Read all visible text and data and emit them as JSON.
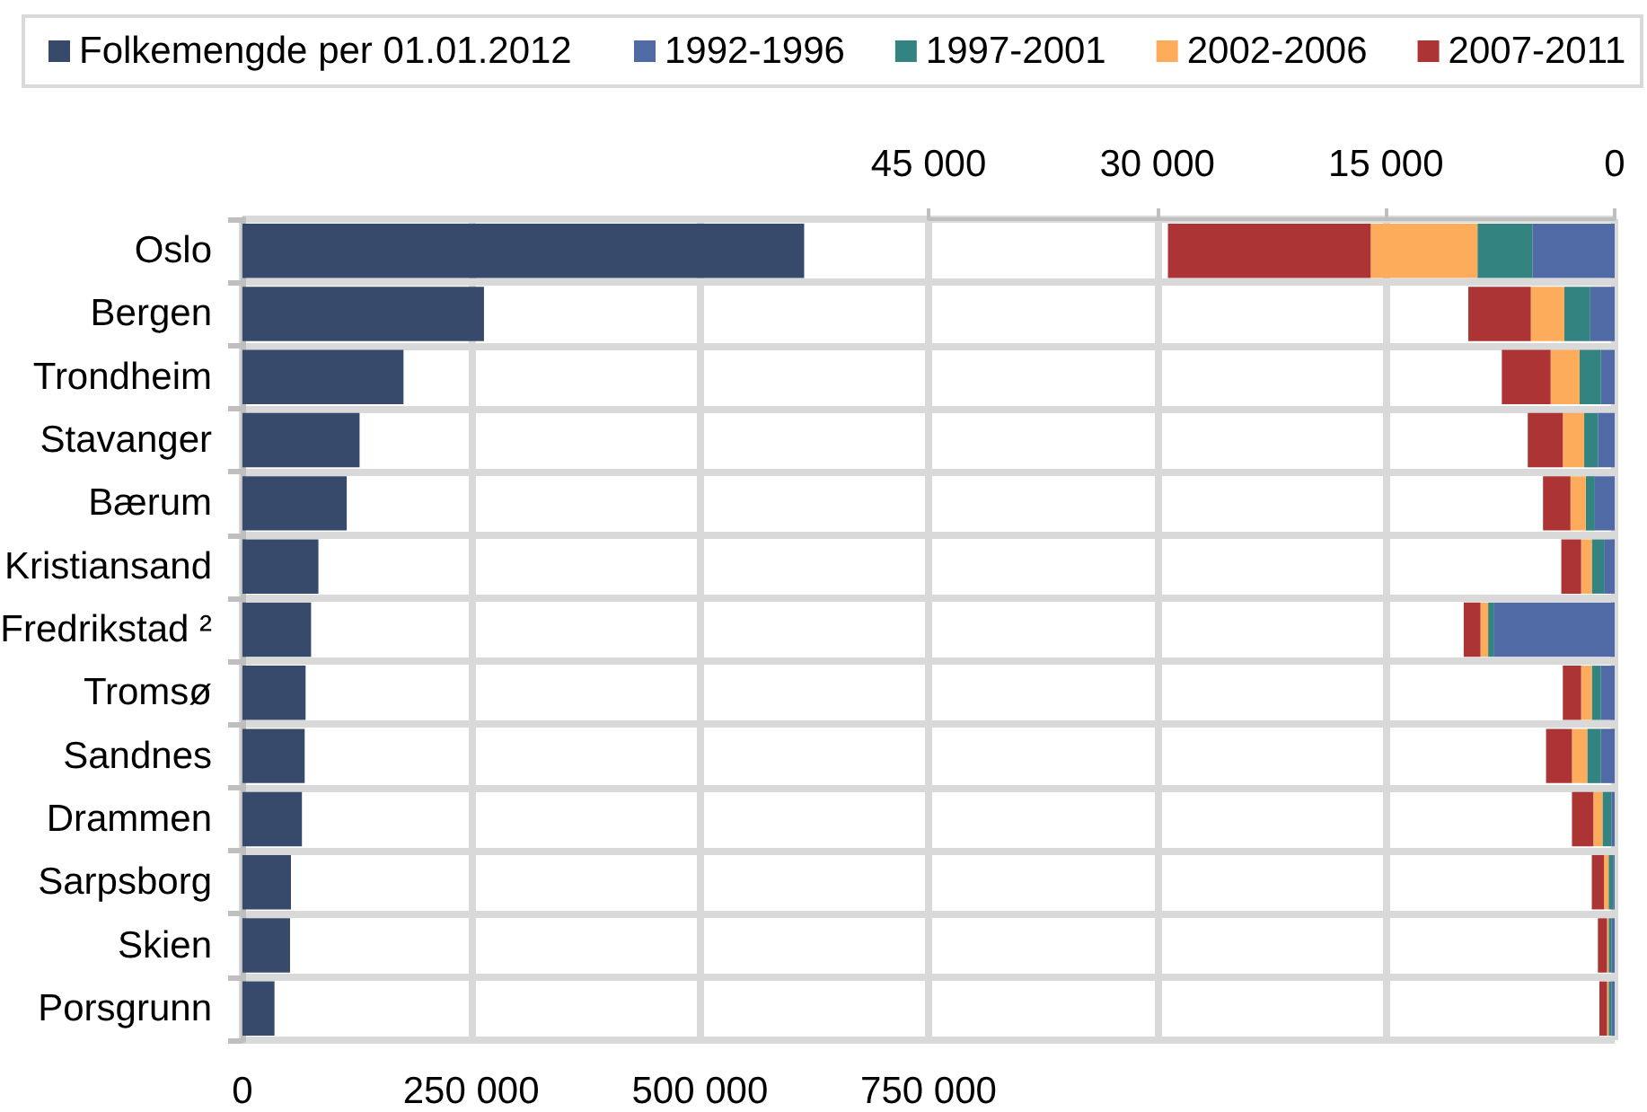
{
  "chart_data": [
    {
      "type": "bar",
      "orientation": "horizontal",
      "categories": [
        "Oslo",
        "Bergen",
        "Trondheim",
        "Stavanger",
        "Bærum",
        "Kristiansand",
        "Fredrikstad ²",
        "Tromsø",
        "Sandnes",
        "Drammen",
        "Sarpsborg",
        "Skien",
        "Porsgrunn"
      ],
      "series": [
        {
          "name": "Folkemengde per 01.01.2012",
          "color": "#374a6b",
          "values": [
            614000,
            264000,
            176000,
            128000,
            114000,
            83000,
            75000,
            69000,
            68000,
            65000,
            53000,
            52000,
            35000
          ]
        }
      ],
      "xlim": [
        0,
        750000
      ],
      "xticks": [
        0,
        {
          "value": 250000,
          "label": "250 000"
        },
        {
          "value": 500000,
          "label": "500 000"
        },
        {
          "value": 750000,
          "label": "750 000"
        }
      ],
      "grid": true,
      "legend": "top"
    },
    {
      "type": "bar",
      "orientation": "horizontal",
      "stacked": true,
      "categories": [
        null,
        null,
        null,
        null,
        null,
        null,
        null,
        null,
        null,
        null,
        null,
        null,
        null
      ],
      "series": [
        {
          "name": "1992-1996",
          "color": "#4f6aa4",
          "values": [
            5400,
            1600,
            900,
            1100,
            1300,
            700,
            7900,
            900,
            900,
            200,
            100,
            200,
            200
          ]
        },
        {
          "name": "1997-2001",
          "color": "#338481",
          "values": [
            3600,
            1700,
            1400,
            900,
            600,
            800,
            400,
            600,
            900,
            600,
            300,
            200,
            200
          ]
        },
        {
          "name": "2002-2006",
          "color": "#fdac5b",
          "values": [
            7000,
            2200,
            1900,
            1400,
            1000,
            700,
            500,
            700,
            1000,
            600,
            300,
            100,
            100
          ]
        },
        {
          "name": "2007-2011",
          "color": "#ad3434",
          "values": [
            13300,
            4100,
            3200,
            2300,
            1800,
            1300,
            1100,
            1200,
            1700,
            1400,
            800,
            600,
            500
          ]
        }
      ],
      "xlim": [
        45000,
        0
      ],
      "xticks": [
        0,
        {
          "value": 15000,
          "label": "15 000"
        },
        {
          "value": 30000,
          "label": "30 000"
        },
        {
          "value": 45000,
          "label": "45 000"
        }
      ],
      "tick_labels": "x",
      "grid": true,
      "legend": "top"
    }
  ]
}
